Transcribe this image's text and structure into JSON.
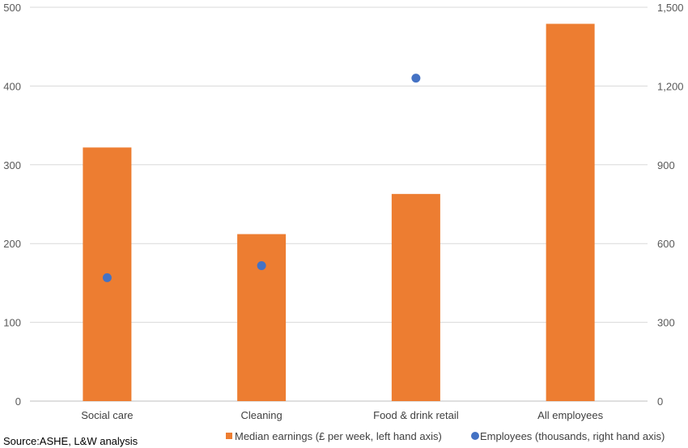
{
  "chart_data": {
    "type": "bar",
    "categories": [
      "Social care",
      "Cleaning",
      "Food & drink retail",
      "All employees"
    ],
    "series": [
      {
        "name": "Median earnings (£ per week, left hand axis)",
        "kind": "bar",
        "axis": "left",
        "values": [
          322,
          212,
          263,
          479
        ],
        "color": "#ED7D31"
      },
      {
        "name": "Employees (thousands, right hand axis)",
        "kind": "scatter",
        "axis": "right",
        "values": [
          470,
          516,
          1230,
          null
        ],
        "color": "#4472C4"
      }
    ],
    "left_axis": {
      "ylim": [
        0,
        500
      ],
      "ticks": [
        "0",
        "100",
        "200",
        "300",
        "400",
        "500"
      ]
    },
    "right_axis": {
      "ylim": [
        0,
        1500
      ],
      "ticks": [
        "0",
        "300",
        "600",
        "900",
        "1,200",
        "1,500"
      ]
    },
    "grid": true,
    "legend_position": "bottom-right"
  },
  "source": "Source:ASHE,  L&W analysis"
}
